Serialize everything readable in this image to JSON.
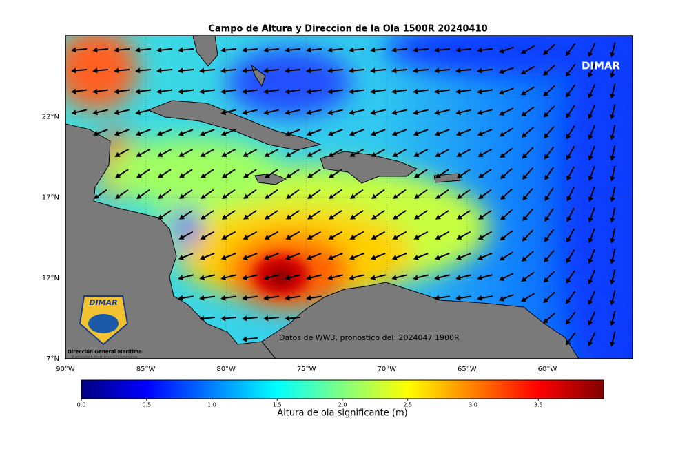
{
  "title": "Campo de Altura y Direccion de la Ola 1500R 20240410",
  "brand": "DIMAR",
  "annotation": "Datos de WW3, pronostico del: 2024047 1900R",
  "logo": {
    "name": "DIMAR",
    "line1": "Dirección General Marítima",
    "line2": "Autoridad Marítima Colombiana"
  },
  "map": {
    "lonlim": [
      -90,
      -54.7
    ],
    "latlim": [
      7,
      27
    ],
    "lon_ticks": [
      {
        "value": -90,
        "label": "90°W"
      },
      {
        "value": -85,
        "label": "85°W"
      },
      {
        "value": -80,
        "label": "80°W"
      },
      {
        "value": -75,
        "label": "75°W"
      },
      {
        "value": -70,
        "label": "70°W"
      },
      {
        "value": -65,
        "label": "65°W"
      },
      {
        "value": -60,
        "label": "60°W"
      }
    ],
    "lat_ticks": [
      {
        "value": 7,
        "label": "7°N"
      },
      {
        "value": 12,
        "label": "12°N"
      },
      {
        "value": 17,
        "label": "17°N"
      },
      {
        "value": 22,
        "label": "22°N"
      }
    ]
  },
  "colorbar": {
    "label": "Altura de ola significante (m)",
    "lim": [
      0,
      4
    ],
    "ticks": [
      {
        "value": 0,
        "label": "0.0"
      },
      0.5,
      {
        "value": 1,
        "label": "1.0"
      },
      1.5,
      {
        "value": 2,
        "label": "2.0"
      },
      2.5,
      {
        "value": 3,
        "label": "3.0"
      },
      3.5
    ]
  }
}
